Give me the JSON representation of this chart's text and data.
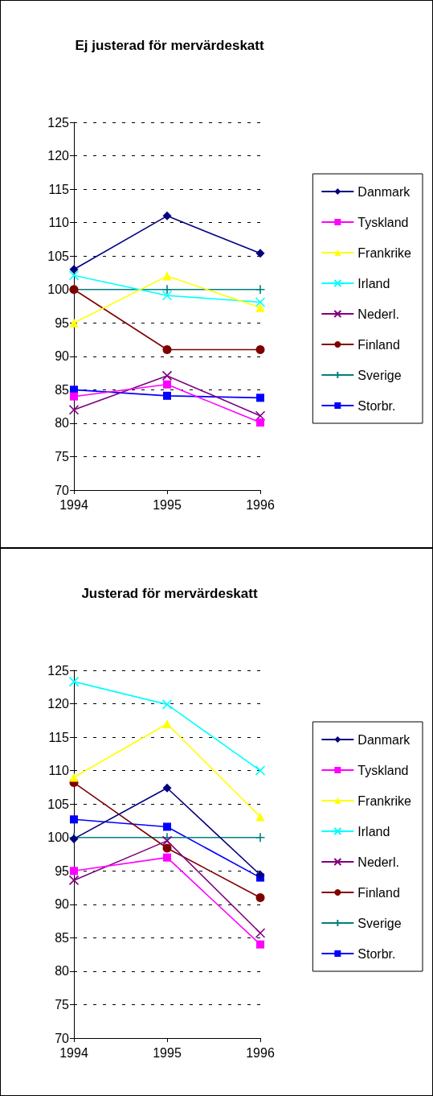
{
  "chart_data": [
    {
      "type": "line",
      "title": "Ej justerad för mervärdeskatt",
      "categories": [
        "1994",
        "1995",
        "1996"
      ],
      "ylim": [
        70,
        125
      ],
      "yticks": [
        70,
        75,
        80,
        85,
        90,
        95,
        100,
        105,
        110,
        115,
        120,
        125
      ],
      "grid": "y",
      "legend": "right",
      "series": [
        {
          "name": "Danmark",
          "color": "#000080",
          "marker": "diamond",
          "values": [
            103,
            111,
            105.4
          ]
        },
        {
          "name": "Tyskland",
          "color": "#ff00ff",
          "marker": "square",
          "values": [
            84,
            85.8,
            80.1
          ]
        },
        {
          "name": "Frankrike",
          "color": "#ffff00",
          "marker": "triangle",
          "values": [
            95,
            102,
            97.3
          ]
        },
        {
          "name": "Irland",
          "color": "#00ffff",
          "marker": "cross",
          "values": [
            102.1,
            99.1,
            98.1
          ]
        },
        {
          "name": "Nederl.",
          "color": "#800080",
          "marker": "cross",
          "values": [
            82,
            87.1,
            81.1
          ]
        },
        {
          "name": "Finland",
          "color": "#800000",
          "marker": "circle",
          "values": [
            100,
            91,
            91
          ]
        },
        {
          "name": "Sverige",
          "color": "#008080",
          "marker": "plus",
          "values": [
            100,
            100,
            100
          ]
        },
        {
          "name": "Storbr.",
          "color": "#0000ff",
          "marker": "square",
          "values": [
            85,
            84.1,
            83.8
          ]
        }
      ]
    },
    {
      "type": "line",
      "title": "Justerad för mervärdeskatt",
      "categories": [
        "1994",
        "1995",
        "1996"
      ],
      "ylim": [
        70,
        125
      ],
      "yticks": [
        70,
        75,
        80,
        85,
        90,
        95,
        100,
        105,
        110,
        115,
        120,
        125
      ],
      "grid": "y",
      "legend": "right",
      "series": [
        {
          "name": "Danmark",
          "color": "#000080",
          "marker": "diamond",
          "values": [
            99.8,
            107.4,
            94.4
          ]
        },
        {
          "name": "Tyskland",
          "color": "#ff00ff",
          "marker": "square",
          "values": [
            95,
            97,
            84
          ]
        },
        {
          "name": "Frankrike",
          "color": "#ffff00",
          "marker": "triangle",
          "values": [
            109,
            117,
            103.1
          ]
        },
        {
          "name": "Irland",
          "color": "#00ffff",
          "marker": "cross",
          "values": [
            123.3,
            119.9,
            110
          ]
        },
        {
          "name": "Nederl.",
          "color": "#800080",
          "marker": "cross",
          "values": [
            93.6,
            99.5,
            85.7
          ]
        },
        {
          "name": "Finland",
          "color": "#800000",
          "marker": "circle",
          "values": [
            108.2,
            98.4,
            91
          ]
        },
        {
          "name": "Sverige",
          "color": "#008080",
          "marker": "plus",
          "values": [
            100,
            100,
            100
          ]
        },
        {
          "name": "Storbr.",
          "color": "#0000ff",
          "marker": "square",
          "values": [
            102.7,
            101.6,
            94
          ]
        }
      ]
    }
  ]
}
